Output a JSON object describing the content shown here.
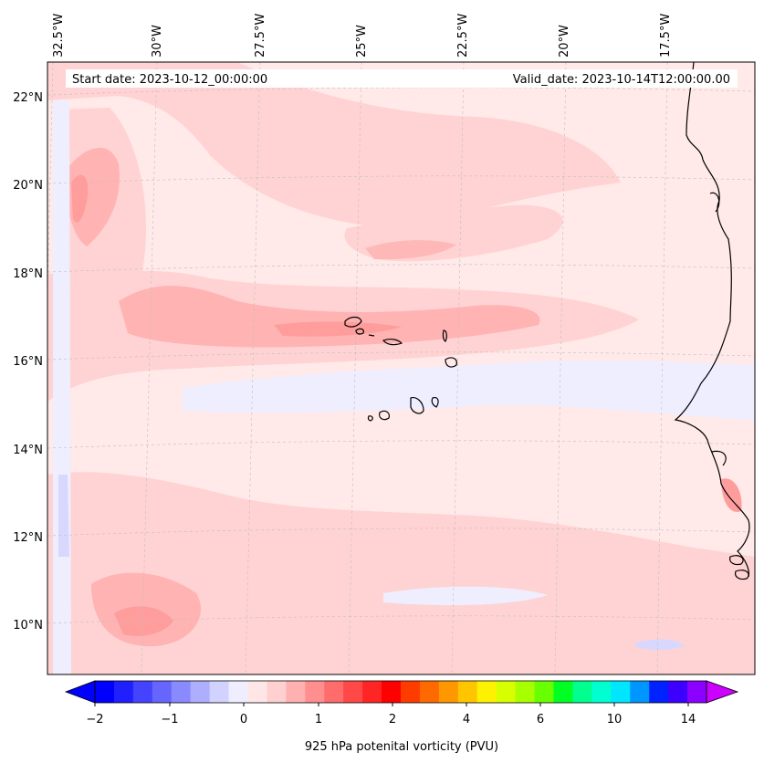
{
  "map": {
    "start_label": "Start date: 2023-10-12_00:00:00",
    "valid_label": "Valid_date: 2023-10-14T12:00:00.00",
    "lon_labels": [
      "32.5°W",
      "30°W",
      "27.5°W",
      "25°W",
      "22.5°W",
      "20°W",
      "17.5°W"
    ],
    "lat_labels": [
      "22°N",
      "20°N",
      "18°N",
      "16°N",
      "14°N",
      "12°N",
      "10°N"
    ],
    "colors": {
      "background": "#ffe9e9",
      "light_pink": "#ffd3d3",
      "pink": "#ffb3b3",
      "medium_pink": "#ff9d9d",
      "pale_blue": "#eeeeff",
      "light_blue": "#d8d8ff",
      "coastline": "#000000"
    }
  },
  "colorbar": {
    "title": "925 hPa potenital vorticity (PVU)",
    "tick_labels": [
      "−2",
      "−1",
      "0",
      "1",
      "2",
      "4",
      "6",
      "10",
      "14"
    ],
    "tick_values": [
      -2,
      -1,
      0,
      1,
      2,
      4,
      6,
      10,
      14
    ],
    "colors": [
      "#0000ff",
      "#2020ff",
      "#4444ff",
      "#6666ff",
      "#8a8aff",
      "#aeaeff",
      "#d2d2ff",
      "#eeeeff",
      "#ffe6e6",
      "#ffd0d0",
      "#ffb0b0",
      "#ff8f8f",
      "#ff6c6c",
      "#ff4848",
      "#ff2525",
      "#ff0000",
      "#ff3c00",
      "#ff6a00",
      "#ff9800",
      "#ffc600",
      "#fff200",
      "#d7ff00",
      "#a8ff00",
      "#6aff00",
      "#00ff22",
      "#00ff8e",
      "#00ffd0",
      "#00e6ff",
      "#0096ff",
      "#0022ff",
      "#3c00ff",
      "#8c00ff"
    ],
    "extend_min_color": "#0000ff",
    "extend_max_color": "#cc00ff"
  }
}
